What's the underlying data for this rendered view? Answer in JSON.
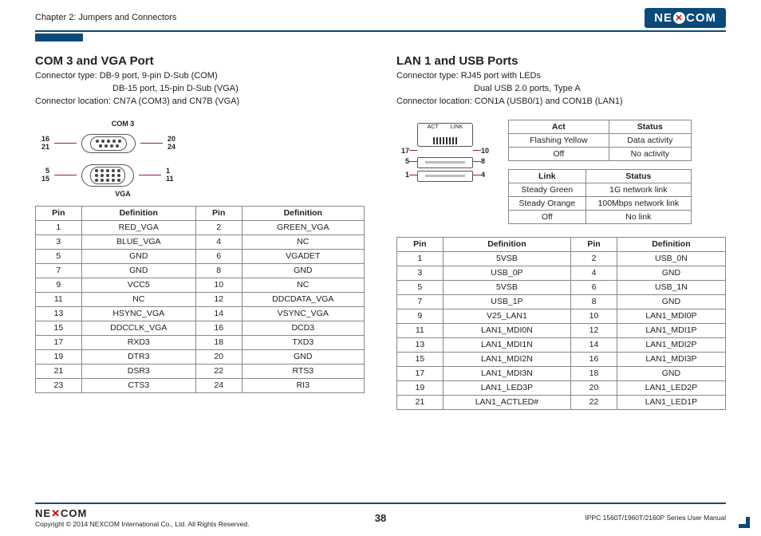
{
  "header": {
    "chapter": "Chapter 2: Jumpers and Connectors",
    "logo_left": "NE",
    "logo_right": "COM"
  },
  "left": {
    "title": "COM 3 and VGA Port",
    "conn1": "Connector type: DB-9 port, 9-pin D-Sub (COM)",
    "conn2": "DB-15 port, 15-pin D-Sub (VGA)",
    "conn3": "Connector location: CN7A (COM3) and CN7B (VGA)",
    "com3_caption": "COM 3",
    "vga_caption": "VGA",
    "com3_left_top": "16",
    "com3_left_bot": "21",
    "com3_right_top": "20",
    "com3_right_bot": "24",
    "vga_left_top": "5",
    "vga_left_bot": "15",
    "vga_right_top": "1",
    "vga_right_bot": "11",
    "th_pin": "Pin",
    "th_def": "Definition",
    "rows": [
      [
        "1",
        "RED_VGA",
        "2",
        "GREEN_VGA"
      ],
      [
        "3",
        "BLUE_VGA",
        "4",
        "NC"
      ],
      [
        "5",
        "GND",
        "6",
        "VGADET"
      ],
      [
        "7",
        "GND",
        "8",
        "GND"
      ],
      [
        "9",
        "VCC5",
        "10",
        "NC"
      ],
      [
        "11",
        "NC",
        "12",
        "DDCDATA_VGA"
      ],
      [
        "13",
        "HSYNC_VGA",
        "14",
        "VSYNC_VGA"
      ],
      [
        "15",
        "DDCCLK_VGA",
        "16",
        "DCD3"
      ],
      [
        "17",
        "RXD3",
        "18",
        "TXD3"
      ],
      [
        "19",
        "DTR3",
        "20",
        "GND"
      ],
      [
        "21",
        "DSR3",
        "22",
        "RTS3"
      ],
      [
        "23",
        "CTS3",
        "24",
        "RI3"
      ]
    ]
  },
  "right": {
    "title": "LAN 1 and USB Ports",
    "conn1": "Connector type: RJ45 port with LEDs",
    "conn2": "Dual USB 2.0 ports, Type A",
    "conn3": "Connector location: CON1A (USB0/1) and CON1B (LAN1)",
    "act_label": "ACT",
    "link_label": "LINK",
    "p17": "17",
    "p10": "10",
    "p5": "5",
    "p8": "8",
    "p1": "1",
    "p4": "4",
    "act_th1": "Act",
    "act_th2": "Status",
    "act_rows": [
      [
        "Flashing Yellow",
        "Data activity"
      ],
      [
        "Off",
        "No activity"
      ]
    ],
    "link_th1": "Link",
    "link_th2": "Status",
    "link_rows": [
      [
        "Steady Green",
        "1G network link"
      ],
      [
        "Steady Orange",
        "100Mbps network link"
      ],
      [
        "Off",
        "No link"
      ]
    ],
    "th_pin": "Pin",
    "th_def": "Definition",
    "rows": [
      [
        "1",
        "5VSB",
        "2",
        "USB_0N"
      ],
      [
        "3",
        "USB_0P",
        "4",
        "GND"
      ],
      [
        "5",
        "5VSB",
        "6",
        "USB_1N"
      ],
      [
        "7",
        "USB_1P",
        "8",
        "GND"
      ],
      [
        "9",
        "V25_LAN1",
        "10",
        "LAN1_MDI0P"
      ],
      [
        "11",
        "LAN1_MDI0N",
        "12",
        "LAN1_MDI1P"
      ],
      [
        "13",
        "LAN1_MDI1N",
        "14",
        "LAN1_MDI2P"
      ],
      [
        "15",
        "LAN1_MDI2N",
        "16",
        "LAN1_MDI3P"
      ],
      [
        "17",
        "LAN1_MDI3N",
        "18",
        "GND"
      ],
      [
        "19",
        "LAN1_LED3P",
        "20",
        "LAN1_LED2P"
      ],
      [
        "21",
        "LAN1_ACTLED#",
        "22",
        "LAN1_LED1P"
      ]
    ]
  },
  "footer": {
    "copyright": "Copyright © 2014 NEXCOM International Co., Ltd. All Rights Reserved.",
    "page": "38",
    "manual": "IPPC 1560T/1960T/2160P Series User Manual"
  }
}
